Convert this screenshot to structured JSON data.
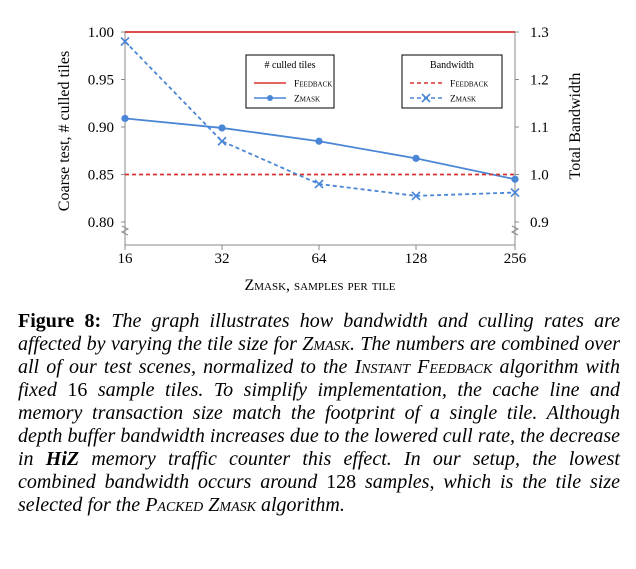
{
  "chart_data": {
    "type": "line",
    "x_ticks": [
      "16",
      "32",
      "64",
      "128",
      "256"
    ],
    "x": [
      16,
      32,
      64,
      128,
      256
    ],
    "xlabel": "Zmask, samples per tile",
    "ylabel_left": "Coarse test, # culled tiles",
    "ylabel_right": "Total Bandwidth",
    "ylim_left": [
      0.8,
      1.0
    ],
    "ylim_right": [
      0.9,
      1.3
    ],
    "left_ticks": [
      "0.80",
      "0.85",
      "0.90",
      "0.95",
      "1.00"
    ],
    "right_ticks": [
      "0.9",
      "1.0",
      "1.1",
      "1.2",
      "1.3"
    ],
    "series": [
      {
        "name": "Feedback",
        "group": "# culled tiles",
        "axis": "left",
        "style": "solid",
        "color": "#d9322e",
        "values": [
          1.0,
          1.0,
          1.0,
          1.0,
          1.0
        ]
      },
      {
        "name": "Zmask",
        "group": "# culled tiles",
        "axis": "left",
        "style": "solid",
        "color": "#4a86d6",
        "values": [
          0.909,
          0.899,
          0.885,
          0.867,
          0.845
        ]
      },
      {
        "name": "Feedback",
        "group": "Bandwidth",
        "axis": "right",
        "style": "dashed",
        "color": "#d9322e",
        "values": [
          1.0,
          1.0,
          1.0,
          1.0,
          1.0
        ]
      },
      {
        "name": "Zmask",
        "group": "Bandwidth",
        "axis": "right",
        "style": "dashed",
        "color": "#4a86d6",
        "values": [
          1.28,
          1.07,
          0.98,
          0.955,
          0.962
        ]
      }
    ],
    "legends": [
      {
        "title": "# culled tiles",
        "entries": [
          "Feedback",
          "Zmask"
        ]
      },
      {
        "title": "Bandwidth",
        "entries": [
          "Feedback",
          "Zmask"
        ]
      }
    ],
    "legend_placement": "top-right",
    "grid": false
  },
  "caption": {
    "label": "Figure 8:",
    "t1": " The graph illustrates how bandwidth and culling rates are affected by varying the tile size for ",
    "zmask1": "Zmask",
    "t2": ". The numbers are combined over all of our test scenes, normalized to the ",
    "instant_feedback": "Instant Feedback",
    "t3": " algorithm with fixed ",
    "n16": "16",
    "t4": " sample tiles. To simplify implementation, the cache line and memory transaction size match the footprint of a single tile. Although depth buffer bandwidth increases due to the lowered cull rate, the decrease in ",
    "hiz": "HiZ",
    "t5": " memory traffic counter this effect. In our setup, the lowest combined bandwidth occurs around ",
    "n128": "128",
    "t6": " samples, which is the tile size selected for the ",
    "packed_zmask": "Packed Zmask",
    "t7": " algorithm."
  }
}
